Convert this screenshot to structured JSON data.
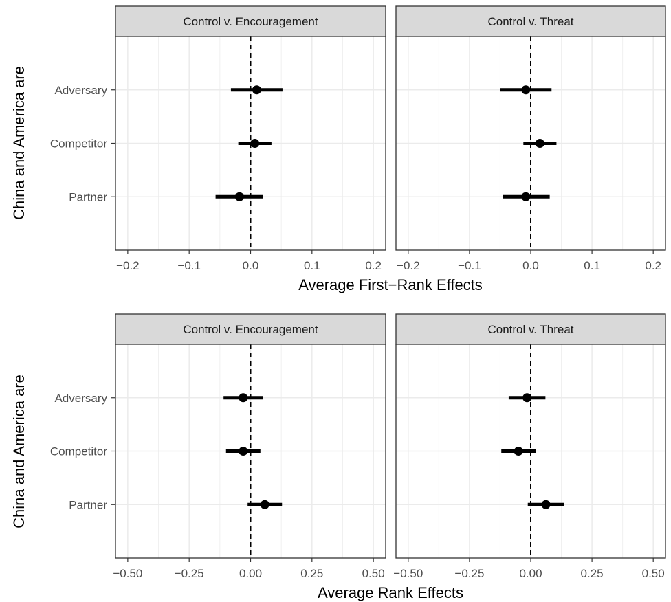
{
  "chart_data": [
    {
      "type": "scatter",
      "subtype": "coefficient-plot",
      "xlabel": "Average First−Rank Effects",
      "ylabel": "China and America are",
      "xlim": [
        -0.22,
        0.22
      ],
      "x_ticks": [
        -0.2,
        -0.1,
        0.0,
        0.1,
        0.2
      ],
      "x_tick_labels": [
        "−0.2",
        "−0.1",
        "0.0",
        "0.1",
        "0.2"
      ],
      "categories": [
        "Partner",
        "Competitor",
        "Adversary"
      ],
      "reference_line": 0,
      "grid": true,
      "panels": [
        {
          "title": "Control v. Encouragement",
          "points": [
            {
              "category": "Partner",
              "estimate": -0.018,
              "lower": -0.057,
              "upper": 0.02
            },
            {
              "category": "Competitor",
              "estimate": 0.007,
              "lower": -0.02,
              "upper": 0.034
            },
            {
              "category": "Adversary",
              "estimate": 0.01,
              "lower": -0.032,
              "upper": 0.052
            }
          ]
        },
        {
          "title": "Control v. Threat",
          "points": [
            {
              "category": "Partner",
              "estimate": -0.008,
              "lower": -0.046,
              "upper": 0.031
            },
            {
              "category": "Competitor",
              "estimate": 0.015,
              "lower": -0.012,
              "upper": 0.042
            },
            {
              "category": "Adversary",
              "estimate": -0.008,
              "lower": -0.05,
              "upper": 0.034
            }
          ]
        }
      ]
    },
    {
      "type": "scatter",
      "subtype": "coefficient-plot",
      "xlabel": "Average Rank Effects",
      "ylabel": "China and America are",
      "xlim": [
        -0.55,
        0.55
      ],
      "x_ticks": [
        -0.5,
        -0.25,
        0.0,
        0.25,
        0.5
      ],
      "x_tick_labels": [
        "−0.50",
        "−0.25",
        "0.00",
        "0.25",
        "0.50"
      ],
      "categories": [
        "Partner",
        "Competitor",
        "Adversary"
      ],
      "reference_line": 0,
      "grid": true,
      "panels": [
        {
          "title": "Control v. Encouragement",
          "points": [
            {
              "category": "Partner",
              "estimate": 0.058,
              "lower": -0.012,
              "upper": 0.128
            },
            {
              "category": "Competitor",
              "estimate": -0.03,
              "lower": -0.1,
              "upper": 0.04
            },
            {
              "category": "Adversary",
              "estimate": -0.03,
              "lower": -0.11,
              "upper": 0.05
            }
          ]
        },
        {
          "title": "Control v. Threat",
          "points": [
            {
              "category": "Partner",
              "estimate": 0.062,
              "lower": -0.012,
              "upper": 0.136
            },
            {
              "category": "Competitor",
              "estimate": -0.05,
              "lower": -0.12,
              "upper": 0.02
            },
            {
              "category": "Adversary",
              "estimate": -0.015,
              "lower": -0.09,
              "upper": 0.06
            }
          ]
        }
      ]
    }
  ]
}
